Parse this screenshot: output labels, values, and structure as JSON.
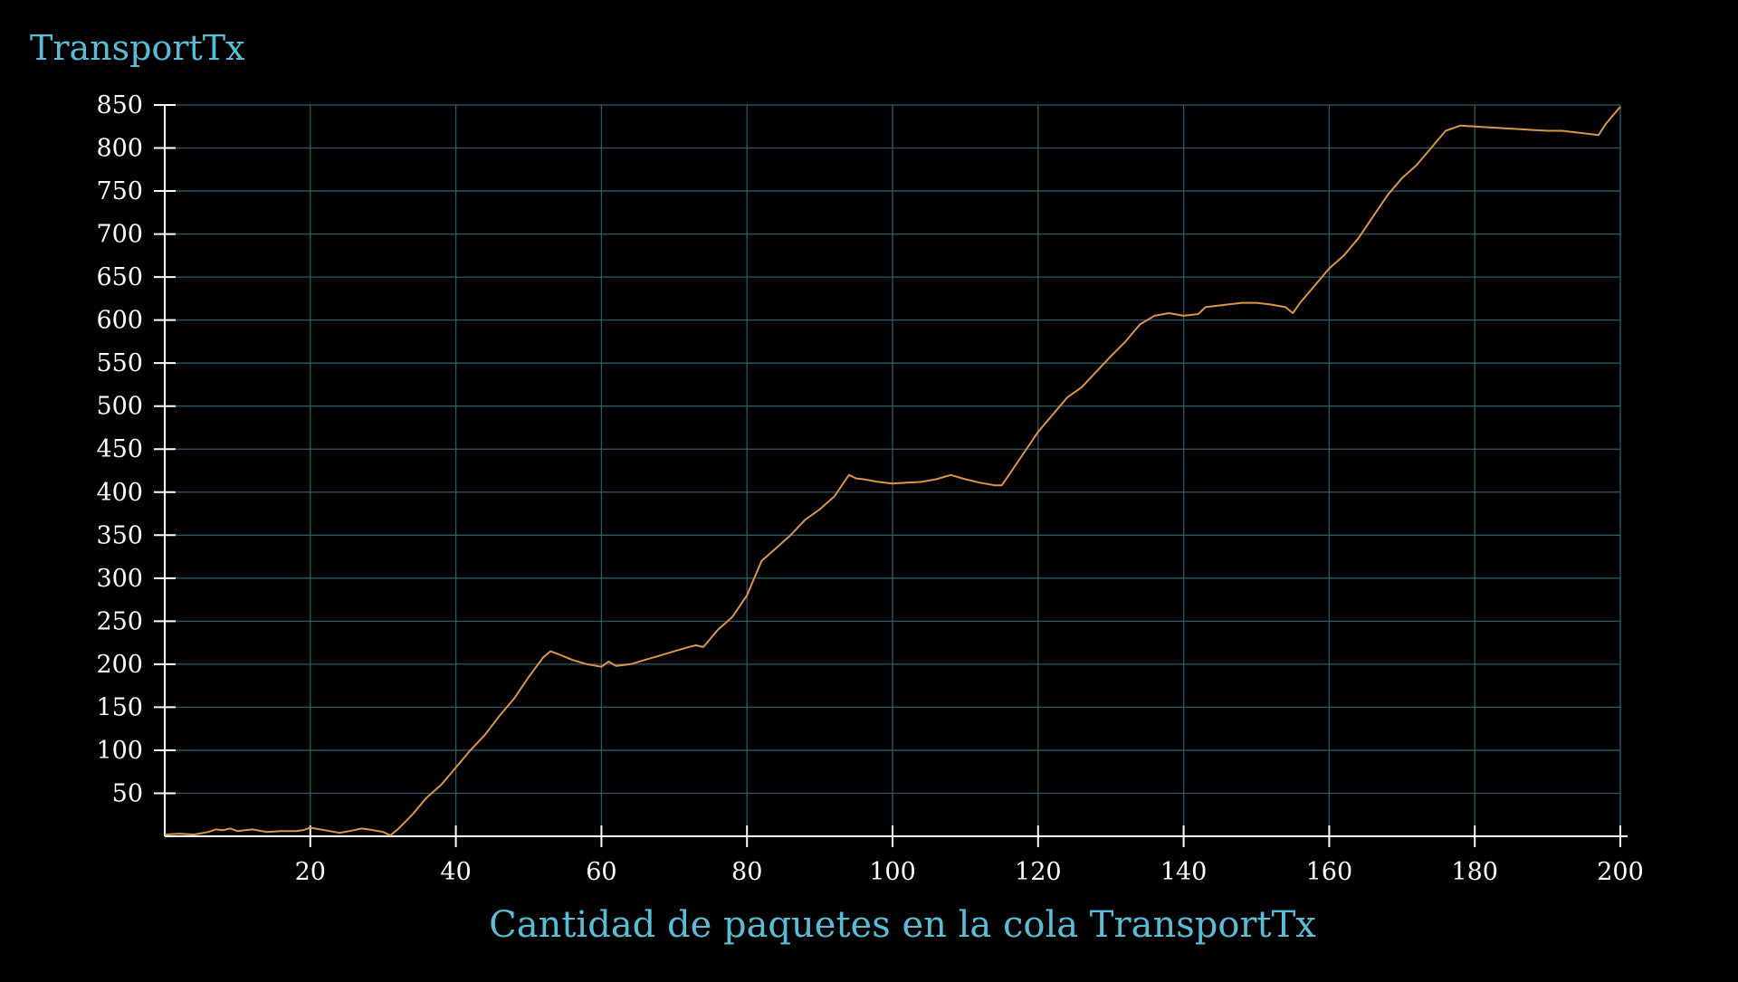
{
  "chart_data": {
    "type": "line",
    "title": "TransportTx",
    "xlabel": "Cantidad de paquetes en la cola TransportTx",
    "ylabel": "",
    "xlim": [
      0,
      200
    ],
    "ylim": [
      0,
      850
    ],
    "x_ticks": [
      20,
      40,
      60,
      80,
      100,
      120,
      140,
      160,
      180,
      200
    ],
    "y_ticks": [
      50,
      100,
      150,
      200,
      250,
      300,
      350,
      400,
      450,
      500,
      550,
      600,
      650,
      700,
      750,
      800,
      850
    ],
    "grid": true,
    "colors": {
      "background": "#000000",
      "title": "#5bbcd6",
      "grid": "#2e5a68",
      "axis": "#ffffff",
      "series": "#d9954a"
    },
    "series": [
      {
        "x": [
          0,
          2,
          4,
          6,
          7,
          8,
          9,
          10,
          12,
          14,
          16,
          18,
          19,
          20,
          22,
          24,
          26,
          27,
          28,
          30,
          31,
          32,
          34,
          36,
          38,
          40,
          42,
          44,
          46,
          48,
          50,
          52,
          53,
          54,
          56,
          58,
          60,
          61,
          62,
          64,
          66,
          68,
          70,
          72,
          73,
          74,
          76,
          78,
          80,
          82,
          84,
          86,
          88,
          90,
          92,
          94,
          95,
          96,
          98,
          100,
          102,
          104,
          106,
          108,
          110,
          112,
          114,
          115,
          116,
          118,
          120,
          122,
          124,
          126,
          128,
          130,
          132,
          134,
          136,
          138,
          140,
          142,
          143,
          144,
          146,
          148,
          150,
          152,
          154,
          155,
          156,
          158,
          160,
          162,
          164,
          166,
          168,
          170,
          172,
          174,
          176,
          178,
          180,
          182,
          184,
          186,
          188,
          190,
          192,
          194,
          196,
          197,
          198,
          200
        ],
        "values": [
          2,
          3,
          2,
          5,
          8,
          7,
          9,
          6,
          8,
          5,
          6,
          6,
          7,
          10,
          7,
          4,
          7,
          9,
          8,
          5,
          1,
          8,
          25,
          45,
          60,
          80,
          100,
          118,
          140,
          160,
          185,
          208,
          215,
          212,
          205,
          200,
          197,
          203,
          198,
          200,
          205,
          210,
          215,
          220,
          222,
          220,
          240,
          255,
          280,
          320,
          335,
          350,
          368,
          380,
          395,
          420,
          416,
          415,
          412,
          410,
          411,
          412,
          415,
          420,
          415,
          411,
          408,
          408,
          420,
          445,
          470,
          490,
          510,
          522,
          540,
          558,
          575,
          595,
          605,
          608,
          605,
          607,
          615,
          616,
          618,
          620,
          620,
          618,
          615,
          608,
          620,
          640,
          660,
          675,
          695,
          720,
          745,
          765,
          780,
          800,
          820,
          826,
          825,
          824,
          823,
          822,
          821,
          820,
          820,
          818,
          816,
          815,
          828,
          848
        ]
      }
    ]
  }
}
